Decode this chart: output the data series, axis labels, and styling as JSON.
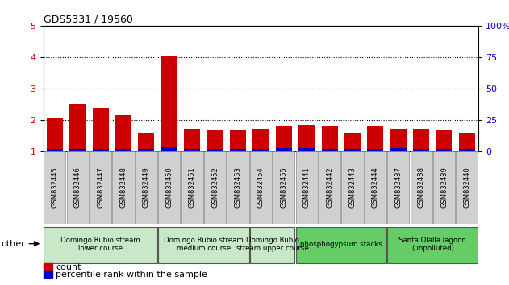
{
  "title": "GDS5331 / 19560",
  "samples": [
    "GSM832445",
    "GSM832446",
    "GSM832447",
    "GSM832448",
    "GSM832449",
    "GSM832450",
    "GSM832451",
    "GSM832452",
    "GSM832453",
    "GSM832454",
    "GSM832455",
    "GSM832441",
    "GSM832442",
    "GSM832443",
    "GSM832444",
    "GSM832437",
    "GSM832438",
    "GSM832439",
    "GSM832440"
  ],
  "count_values": [
    2.05,
    2.5,
    2.38,
    2.15,
    1.58,
    4.05,
    1.7,
    1.65,
    1.68,
    1.7,
    1.78,
    1.85,
    1.78,
    1.58,
    1.78,
    1.72,
    1.72,
    1.65,
    1.58
  ],
  "percentile_values": [
    0.08,
    0.08,
    0.08,
    0.08,
    0.06,
    0.12,
    0.06,
    0.06,
    0.06,
    0.06,
    0.1,
    0.1,
    0.06,
    0.06,
    0.06,
    0.1,
    0.06,
    0.06,
    0.06
  ],
  "count_color": "#cc0000",
  "percentile_color": "#0000cc",
  "bar_base": 1.0,
  "ylim_left": [
    1,
    5
  ],
  "ylim_right": [
    0,
    100
  ],
  "yticks_left": [
    1,
    2,
    3,
    4,
    5
  ],
  "ytick_labels_left": [
    "1",
    "2",
    "3",
    "4",
    "5"
  ],
  "yticks_right": [
    0,
    25,
    50,
    75,
    100
  ],
  "ytick_labels_right": [
    "0",
    "25",
    "50",
    "75",
    "100%"
  ],
  "groups": [
    {
      "label": "Domingo Rubio stream\nlower course",
      "start": 0,
      "end": 5,
      "color": "#c8e8c8"
    },
    {
      "label": "Domingo Rubio stream\nmedium course",
      "start": 5,
      "end": 9,
      "color": "#c8e8c8"
    },
    {
      "label": "Domingo Rubio\nstream upper course",
      "start": 9,
      "end": 11,
      "color": "#c8e8c8"
    },
    {
      "label": "phosphogypsum stacks",
      "start": 11,
      "end": 15,
      "color": "#66cc66"
    },
    {
      "label": "Santa Olalla lagoon\n(unpolluted)",
      "start": 15,
      "end": 19,
      "color": "#66cc66"
    }
  ],
  "legend_count_label": "count",
  "legend_percentile_label": "percentile rank within the sample",
  "other_label": "other",
  "tick_label_color_left": "#cc0000",
  "tick_label_color_right": "#0000cc",
  "xtick_bg_color": "#d0d0d0"
}
